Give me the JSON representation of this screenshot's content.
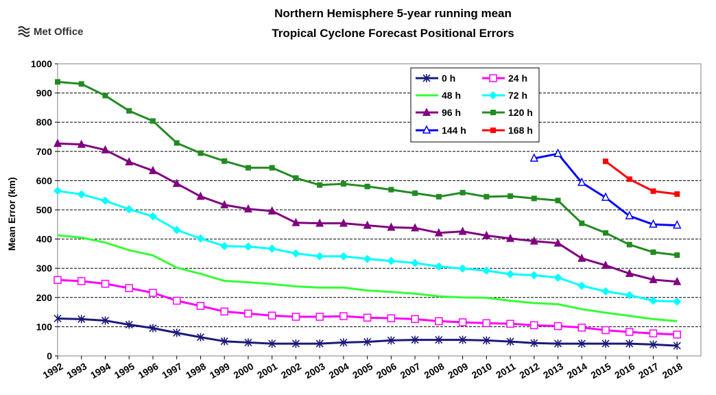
{
  "logo": {
    "text": "Met Office"
  },
  "chart_data": {
    "type": "line",
    "title": [
      "Northern Hemisphere 5-year running mean",
      "Tropical Cyclone Forecast Positional Errors"
    ],
    "ylabel": "Mean Error (km)",
    "xlabel": "",
    "ylim": [
      0,
      1000
    ],
    "yticks": [
      0,
      100,
      200,
      300,
      400,
      500,
      600,
      700,
      800,
      900,
      1000
    ],
    "grid": true,
    "legend_position": "top-center",
    "categories": [
      "1992",
      "1993",
      "1994",
      "1995",
      "1996",
      "1997",
      "1998",
      "1999",
      "2000",
      "2001",
      "2002",
      "2003",
      "2004",
      "2005",
      "2006",
      "2007",
      "2008",
      "2009",
      "2010",
      "2011",
      "2012",
      "2013",
      "2014",
      "2015",
      "2016",
      "2017",
      "2018"
    ],
    "series": [
      {
        "name": "0 h",
        "color": "#1a1a7a",
        "marker": "star",
        "values": [
          128,
          126,
          121,
          107,
          95,
          79,
          64,
          50,
          46,
          42,
          42,
          42,
          46,
          48,
          53,
          55,
          55,
          55,
          53,
          49,
          44,
          42,
          42,
          42,
          42,
          39,
          35
        ]
      },
      {
        "name": "24 h",
        "color": "#ff00ff",
        "marker": "open-square",
        "values": [
          260,
          256,
          247,
          232,
          216,
          189,
          171,
          152,
          145,
          138,
          134,
          134,
          136,
          131,
          129,
          126,
          119,
          115,
          112,
          110,
          105,
          102,
          97,
          88,
          82,
          77,
          73
        ]
      },
      {
        "name": "48 h",
        "color": "#33ff33",
        "marker": "none",
        "values": [
          413,
          405,
          388,
          362,
          344,
          302,
          281,
          257,
          252,
          246,
          238,
          234,
          234,
          224,
          219,
          213,
          204,
          200,
          199,
          189,
          181,
          177,
          160,
          148,
          137,
          126,
          119
        ]
      },
      {
        "name": "72 h",
        "color": "#00ffff",
        "marker": "diamond",
        "values": [
          565,
          553,
          531,
          502,
          478,
          431,
          402,
          376,
          374,
          367,
          351,
          341,
          341,
          332,
          325,
          318,
          306,
          299,
          292,
          280,
          276,
          268,
          240,
          221,
          208,
          189,
          186
        ]
      },
      {
        "name": "96 h",
        "color": "#800080",
        "marker": "triangle",
        "values": [
          727,
          724,
          705,
          664,
          634,
          590,
          546,
          517,
          503,
          496,
          456,
          454,
          454,
          447,
          440,
          438,
          421,
          426,
          412,
          402,
          393,
          386,
          334,
          310,
          282,
          261,
          254
        ]
      },
      {
        "name": "120 h",
        "color": "#228b22",
        "marker": "square",
        "values": [
          938,
          931,
          891,
          839,
          804,
          729,
          694,
          667,
          644,
          644,
          609,
          585,
          589,
          580,
          569,
          557,
          545,
          559,
          545,
          547,
          539,
          532,
          454,
          421,
          381,
          355,
          345
        ]
      },
      {
        "name": "144 h",
        "color": "#0000ff",
        "marker": "open-triangle",
        "values": [
          null,
          null,
          null,
          null,
          null,
          null,
          null,
          null,
          null,
          null,
          null,
          null,
          null,
          null,
          null,
          null,
          null,
          null,
          null,
          null,
          676,
          692,
          593,
          542,
          479,
          450,
          447
        ]
      },
      {
        "name": "168 h",
        "color": "#ff0000",
        "marker": "square",
        "values": [
          null,
          null,
          null,
          null,
          null,
          null,
          null,
          null,
          null,
          null,
          null,
          null,
          null,
          null,
          null,
          null,
          null,
          null,
          null,
          null,
          null,
          null,
          null,
          666,
          605,
          564,
          554
        ]
      }
    ]
  }
}
